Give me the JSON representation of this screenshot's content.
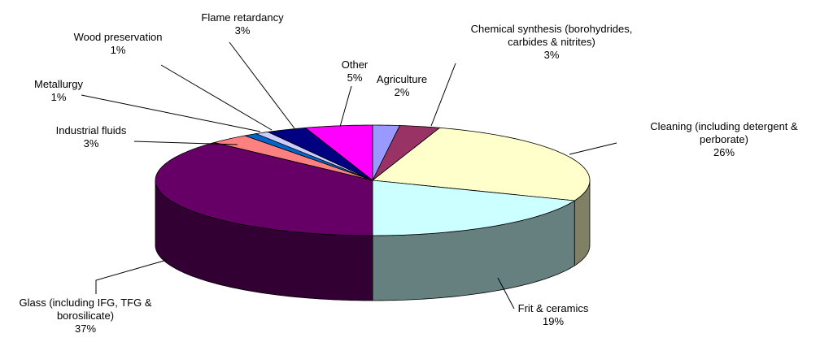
{
  "chart_data": {
    "type": "pie",
    "categories": [
      "Agriculture",
      "Chemical synthesis (borohydrides, carbides & nitrites)",
      "Cleaning (including detergent & perborate)",
      "Frit & ceramics",
      "Glass (including IFG, TFG & borosilicate)",
      "Industrial fluids",
      "Metallurgy",
      "Wood preservation",
      "Flame retardancy",
      "Other"
    ],
    "values": [
      2,
      3,
      26,
      19,
      37,
      3,
      1,
      1,
      3,
      5
    ],
    "value_labels": [
      "2%",
      "3%",
      "26%",
      "19%",
      "37%",
      "3%",
      "1%",
      "1%",
      "3%",
      "5%"
    ],
    "colors": [
      "#9999ff",
      "#993366",
      "#ffffcc",
      "#ccffff",
      "#660066",
      "#ff8080",
      "#0066cc",
      "#ccccff",
      "#000080",
      "#ff00ff"
    ]
  }
}
